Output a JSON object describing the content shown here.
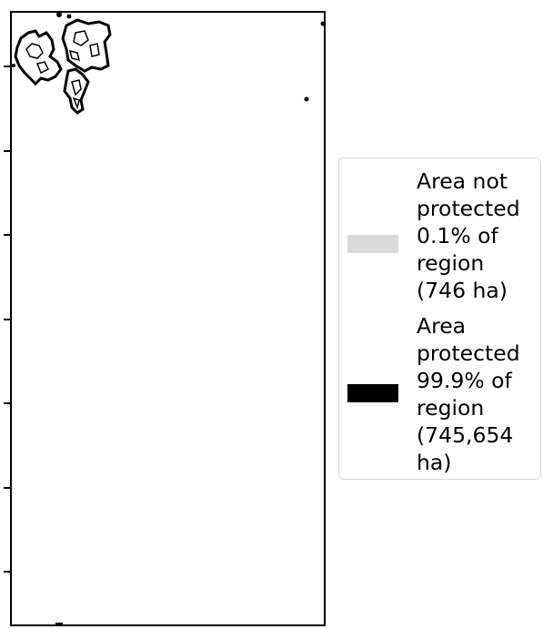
{
  "map": {
    "colors": {
      "boundary": "#000000",
      "protected": "#000000",
      "not_protected": "#d9d9d9",
      "background": "#ffffff"
    }
  },
  "legend": {
    "entries": [
      {
        "lines": [
          "Area not",
          "protected",
          "0.1% of",
          "region",
          "(746 ha)"
        ],
        "color": "#d9d9d9"
      },
      {
        "lines": [
          "Area",
          "protected",
          "99.9% of",
          "region",
          "(745,654",
          "ha)"
        ],
        "color": "#000000"
      }
    ]
  }
}
